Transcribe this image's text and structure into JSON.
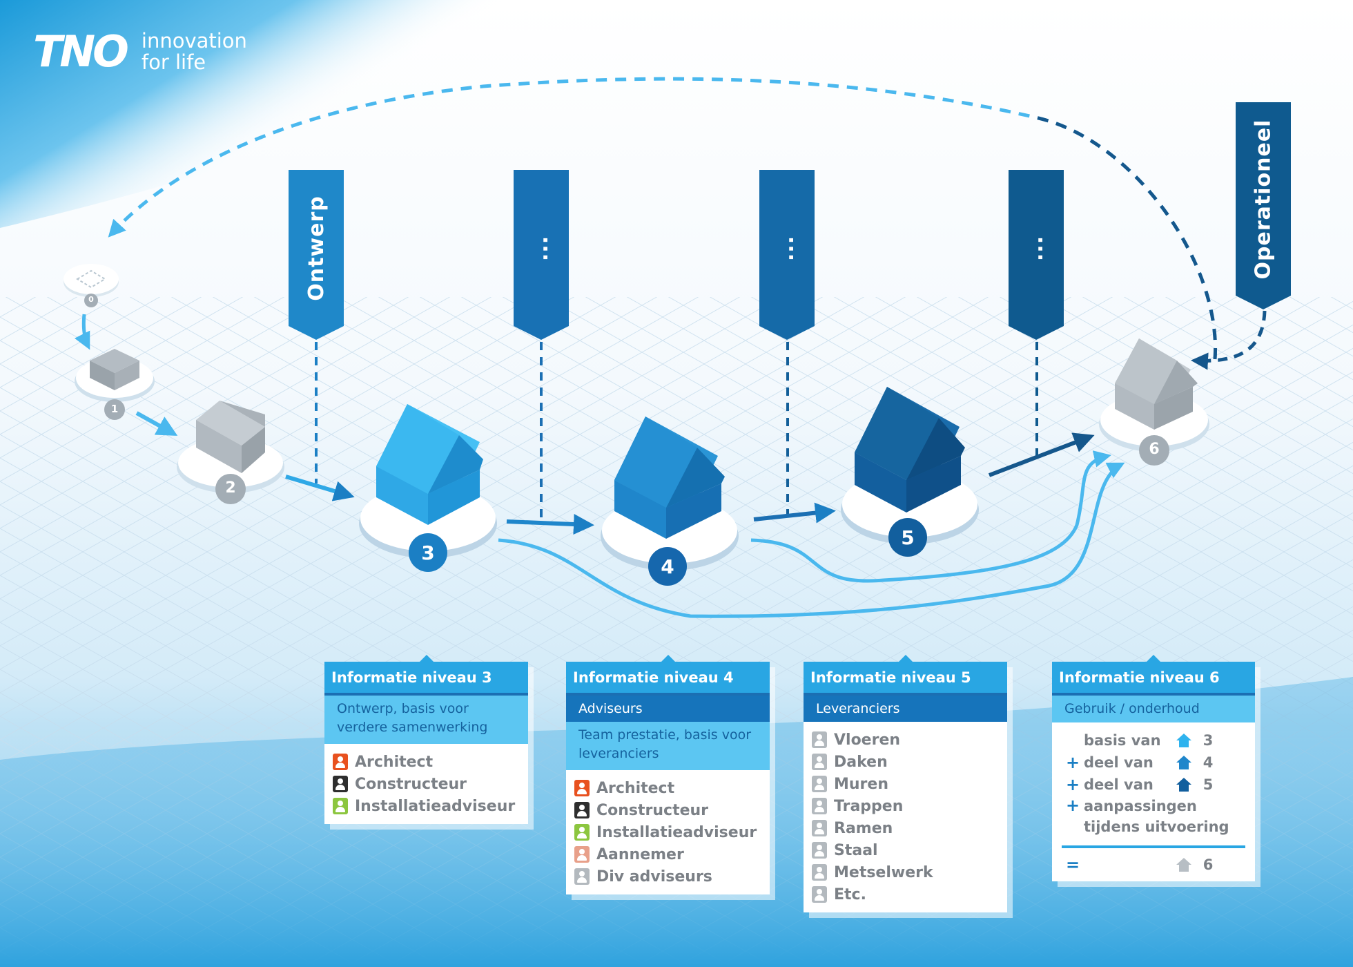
{
  "logo": {
    "mark": "TNO",
    "tagline_line1": "innovation",
    "tagline_line2": "for life"
  },
  "phases": {
    "design": "Ontwerp",
    "dots1": "...",
    "dots2": "...",
    "dots3": "...",
    "operational": "Operationeel"
  },
  "stages": [
    {
      "number": "0"
    },
    {
      "number": "1"
    },
    {
      "number": "2"
    },
    {
      "number": "3"
    },
    {
      "number": "4"
    },
    {
      "number": "5"
    },
    {
      "number": "6"
    }
  ],
  "colors": {
    "level3": "#2fb3ee",
    "level4": "#1f86cb",
    "level5": "#125f9e",
    "level6": "#b7bec4",
    "banner_design": "#1f88c9",
    "banner_dark": "#0f5a8f",
    "accent_light": "#5cc6f2"
  },
  "cards": {
    "level3": {
      "title": "Informatie niveau 3",
      "subtitle": "Ontwerp, basis voor verdere samenwerking",
      "people": [
        {
          "name": "Architect",
          "icon": "person-icon-red"
        },
        {
          "name": "Constructeur",
          "icon": "person-icon-black"
        },
        {
          "name": "Installatieadviseur",
          "icon": "person-icon-green"
        }
      ]
    },
    "level4": {
      "title": "Informatie niveau 4",
      "group": "Adviseurs",
      "subtitle": "Team prestatie, basis voor leveranciers",
      "people": [
        {
          "name": "Architect",
          "icon": "person-icon-red"
        },
        {
          "name": "Constructeur",
          "icon": "person-icon-black"
        },
        {
          "name": "Installatieadviseur",
          "icon": "person-icon-green"
        },
        {
          "name": "Aannemer",
          "icon": "person-icon-salmon"
        },
        {
          "name": "Div adviseurs",
          "icon": "person-icon-grey"
        }
      ]
    },
    "level5": {
      "title": "Informatie niveau 5",
      "group": "Leveranciers",
      "suppliers": [
        "Vloeren",
        "Daken",
        "Muren",
        "Trappen",
        "Ramen",
        "Staal",
        "Metselwerk",
        "Etc."
      ]
    },
    "level6": {
      "title": "Informatie niveau 6",
      "subtitle": "Gebruik / onderhoud",
      "rows": [
        {
          "prefix": "",
          "text": "basis van",
          "level": "3"
        },
        {
          "prefix": "+",
          "text": "deel van",
          "level": "4"
        },
        {
          "prefix": "+",
          "text": "deel van",
          "level": "5"
        }
      ],
      "adjust_prefix": "+",
      "adjust_line1": "aanpassingen",
      "adjust_line2": "tijdens uitvoering",
      "result_prefix": "=",
      "result_level": "6"
    }
  }
}
